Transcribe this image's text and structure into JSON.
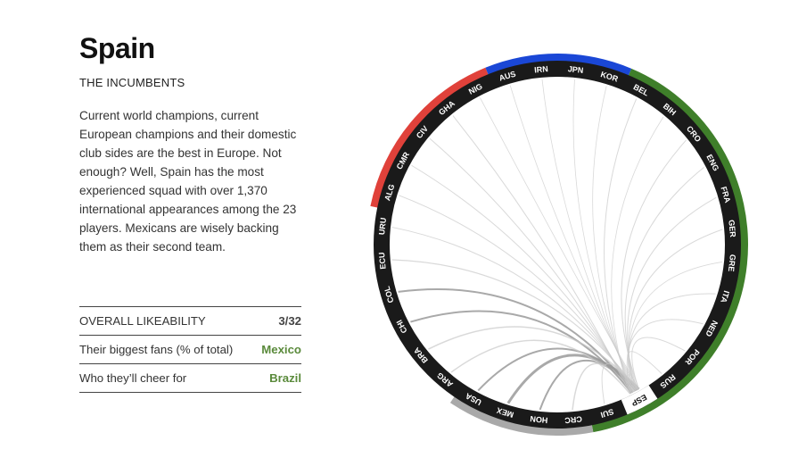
{
  "team": {
    "name": "Spain",
    "subtitle": "THE INCUMBENTS",
    "description": "Current world champions, current European champions and their domestic club sides are the best in Europe. Not enough? Well, Spain has the most experienced squad with over 1,370 international appearances among the 23 players. Mexicans are wisely backing them as their second team."
  },
  "stats": [
    {
      "label": "OVERALL LIKEABILITY",
      "value": "3/32"
    },
    {
      "label": "Their biggest fans (% of total)",
      "value": "Mexico"
    },
    {
      "label": "Who they’ll cheer for",
      "value": "Brazil"
    }
  ],
  "wheel": {
    "selected": "ESP",
    "teams": [
      "URU",
      "ALG",
      "CMR",
      "CIV",
      "GHA",
      "NIG",
      "AUS",
      "IRN",
      "JPN",
      "KOR",
      "BEL",
      "BIH",
      "CRO",
      "ENG",
      "FRA",
      "GER",
      "GRE",
      "ITA",
      "NED",
      "POR",
      "RUS",
      "ESP",
      "SUI",
      "CRC",
      "HON",
      "MEX",
      "USA",
      "ARG",
      "BRA",
      "CHI",
      "COL",
      "ECU"
    ],
    "groups": [
      {
        "color": "#e0413a",
        "teams": [
          "ALG",
          "CMR",
          "CIV",
          "GHA",
          "NIG"
        ]
      },
      {
        "color": "#1a47d6",
        "teams": [
          "AUS",
          "IRN",
          "JPN",
          "KOR"
        ]
      },
      {
        "color": "#3f7f2a",
        "teams": [
          "BEL",
          "BIH",
          "CRO",
          "ENG",
          "FRA",
          "GER",
          "GRE",
          "ITA",
          "NED",
          "POR",
          "RUS",
          "ESP",
          "SUI"
        ]
      },
      {
        "color": "#a9a9a9",
        "teams": [
          "CRC",
          "HON",
          "MEX",
          "USA"
        ]
      },
      {
        "color": "#7b2f8e",
        "teams": [
          "ARG",
          "BRA",
          "CHI",
          "COL",
          "ECU",
          "URU"
        ]
      }
    ],
    "links": [
      {
        "to": "MEX",
        "weight": 3
      },
      {
        "to": "USA",
        "weight": 2
      },
      {
        "to": "HON",
        "weight": 2
      },
      {
        "to": "CRC",
        "weight": 1.5
      },
      {
        "to": "COL",
        "weight": 2
      },
      {
        "to": "CHI",
        "weight": 2
      },
      {
        "to": "ARG",
        "weight": 1.5
      },
      {
        "to": "BRA",
        "weight": 1.5
      },
      {
        "to": "ECU",
        "weight": 1.2
      },
      {
        "to": "URU",
        "weight": 1
      },
      {
        "to": "ALG",
        "weight": 1
      },
      {
        "to": "CMR",
        "weight": 1
      },
      {
        "to": "CIV",
        "weight": 1
      },
      {
        "to": "GHA",
        "weight": 1
      },
      {
        "to": "NIG",
        "weight": 0.8
      },
      {
        "to": "AUS",
        "weight": 0.8
      },
      {
        "to": "IRN",
        "weight": 0.8
      },
      {
        "to": "JPN",
        "weight": 0.8
      },
      {
        "to": "KOR",
        "weight": 0.8
      },
      {
        "to": "BEL",
        "weight": 1
      },
      {
        "to": "BIH",
        "weight": 0.8
      },
      {
        "to": "CRO",
        "weight": 1
      },
      {
        "to": "ENG",
        "weight": 1
      },
      {
        "to": "FRA",
        "weight": 1
      },
      {
        "to": "GER",
        "weight": 1
      },
      {
        "to": "GRE",
        "weight": 0.8
      },
      {
        "to": "ITA",
        "weight": 1
      },
      {
        "to": "NED",
        "weight": 1
      },
      {
        "to": "POR",
        "weight": 1
      },
      {
        "to": "RUS",
        "weight": 1
      },
      {
        "to": "SUI",
        "weight": 1
      }
    ]
  }
}
